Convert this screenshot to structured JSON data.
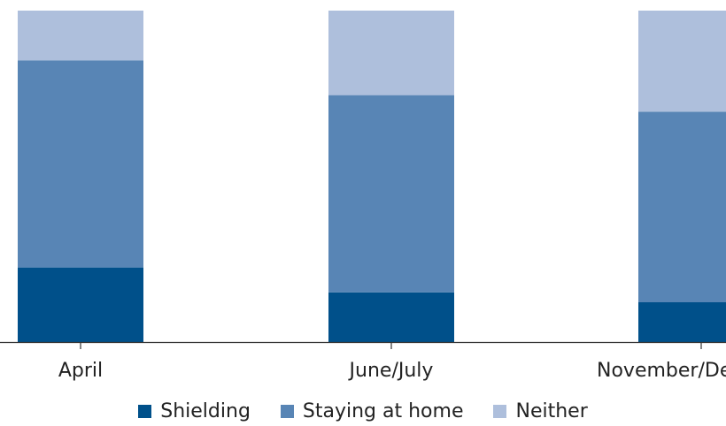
{
  "chart_data": {
    "type": "bar",
    "stacked": true,
    "categories": [
      "April",
      "June/July",
      "November/December"
    ],
    "series": [
      {
        "name": "Shielding",
        "color": "#00508a",
        "values": [
          22.5,
          15,
          12
        ]
      },
      {
        "name": "Staying at home",
        "color": "#5885b5",
        "values": [
          62.5,
          59.5,
          57.5
        ]
      },
      {
        "name": "Neither",
        "color": "#aebfdc",
        "values": [
          15,
          25.5,
          30.5
        ]
      }
    ],
    "ylim": [
      0,
      100
    ],
    "grid": false,
    "legend_position": "bottom"
  }
}
